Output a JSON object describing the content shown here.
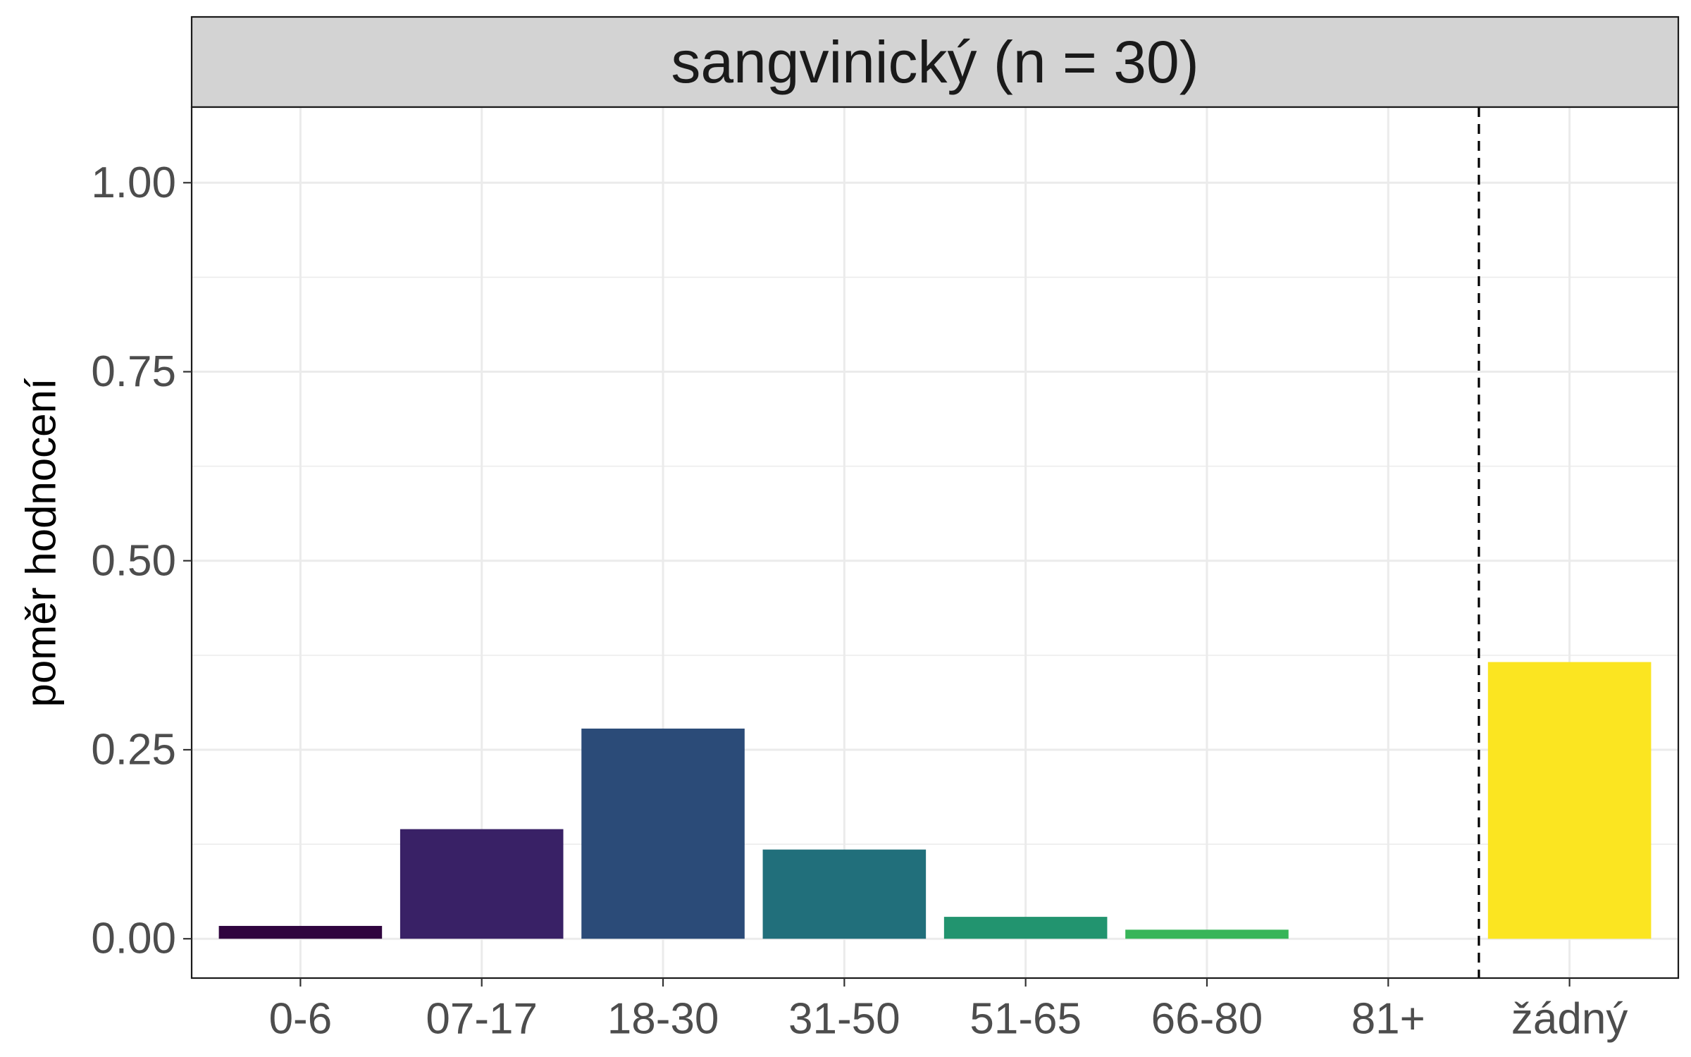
{
  "chart_data": {
    "type": "bar",
    "facet_label": "sangvinický (n = 30)",
    "xlabel": "",
    "ylabel": "poměr hodnocení",
    "categories": [
      "0-6",
      "07-17",
      "18-30",
      "31-50",
      "51-65",
      "66-80",
      "81+",
      "žádný"
    ],
    "values": [
      0.017,
      0.145,
      0.278,
      0.118,
      0.029,
      0.012,
      0,
      0.366
    ],
    "colors": [
      "#440154",
      "#46337e",
      "#365c8d",
      "#277f8e",
      "#1fa187",
      "#4ac16d",
      "#a0da39",
      "#fde725"
    ],
    "bar_colors_rendered": [
      "#30053f",
      "#392166",
      "#2b4b78",
      "#216f7b",
      "#22946f",
      "#38b559",
      "#a0da39",
      "#fbe521"
    ],
    "yticks": [
      "0.00",
      "0.25",
      "0.50",
      "0.75",
      "1.00"
    ],
    "ylim": [
      -0.052,
      1.1
    ],
    "reference_line": {
      "between": [
        "81+",
        "žádný"
      ],
      "style": "dashed"
    },
    "grid": true,
    "legend": "none"
  }
}
